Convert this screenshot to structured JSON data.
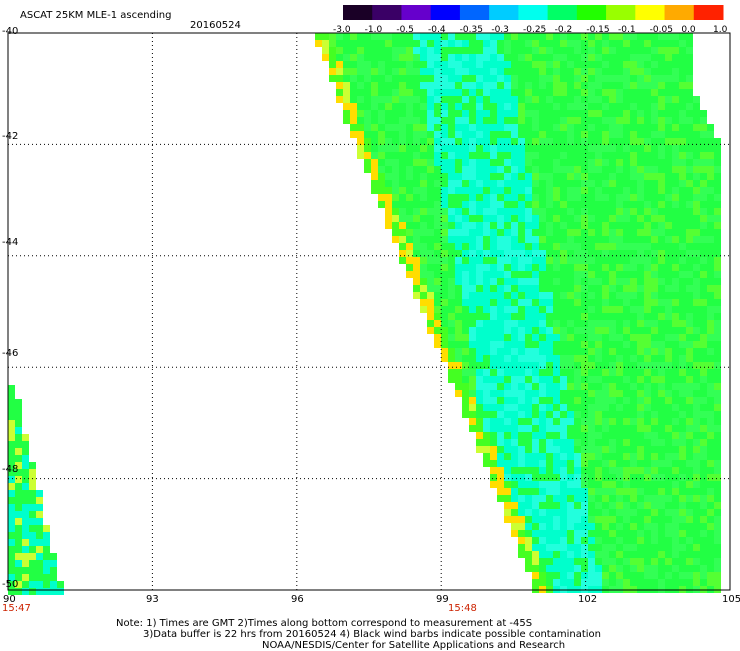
{
  "title": "ASCAT 25KM MLE-1 ascending",
  "date": "20160524",
  "colorbar": {
    "labels": [
      "-3.0",
      "-1.0",
      "-0.5",
      "-0.4",
      "-0.35",
      "-0.3",
      "-0.25",
      "-0.2",
      "-0.15",
      "-0.1",
      "-0.05",
      "0.0",
      "1.0"
    ],
    "colors": [
      "#1a0026",
      "#3a0066",
      "#6600cc",
      "#0000ff",
      "#0066ff",
      "#00ccff",
      "#00ffee",
      "#00ff66",
      "#22ff00",
      "#99ff00",
      "#ffff00",
      "#ffaa00",
      "#ff2200"
    ]
  },
  "axes": {
    "x_ticks": [
      "90",
      "93",
      "96",
      "99",
      "102",
      "105"
    ],
    "y_ticks": [
      "-40",
      "-42",
      "-44",
      "-46",
      "-48",
      "-50"
    ],
    "lon_range": [
      90,
      105
    ],
    "lat_range": [
      -50,
      -40
    ]
  },
  "time_labels": [
    {
      "text": "15:47",
      "lon": 90
    },
    {
      "text": "15:48",
      "lon": 99
    }
  ],
  "notes": [
    "Note: 1) Times are GMT 2)Times along bottom correspond to measurement at -45S",
    "3)Data buffer is 22 hrs from 20160524 4) Black wind barbs indicate possible contamination",
    "NOAA/NESDIS/Center for Satellite Applications and Research"
  ]
}
